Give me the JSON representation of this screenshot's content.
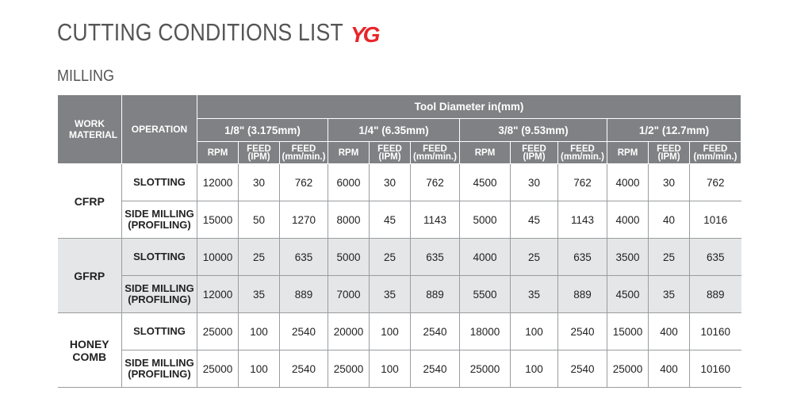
{
  "title": "CUTTING CONDITIONS LIST",
  "logo": {
    "text": "YG",
    "color": "#e8262b"
  },
  "section": "MILLING",
  "table": {
    "work_material_header": "WORK MATERIAL",
    "operation_header": "OPERATION",
    "tool_diameter_header": "Tool Diameter in(mm)",
    "diameters": [
      "1/8\" (3.175mm)",
      "1/4\" (6.35mm)",
      "3/8\" (9.53mm)",
      "1/2\" (12.7mm)"
    ],
    "sub_headers": [
      "RPM",
      "FEED (IPM)",
      "FEED (mm/min.)"
    ],
    "materials": [
      {
        "name": "CFRP",
        "rows": [
          {
            "operation": "SLOTTING",
            "values": [
              "12000",
              "30",
              "762",
              "6000",
              "30",
              "762",
              "4500",
              "30",
              "762",
              "4000",
              "30",
              "762"
            ]
          },
          {
            "operation": "SIDE MILLING (PROFILING)",
            "values": [
              "15000",
              "50",
              "1270",
              "8000",
              "45",
              "1143",
              "5000",
              "45",
              "1143",
              "4000",
              "40",
              "1016"
            ]
          }
        ]
      },
      {
        "name": "GFRP",
        "rows": [
          {
            "operation": "SLOTTING",
            "values": [
              "10000",
              "25",
              "635",
              "5000",
              "25",
              "635",
              "4000",
              "25",
              "635",
              "3500",
              "25",
              "635"
            ]
          },
          {
            "operation": "SIDE MILLING (PROFILING)",
            "values": [
              "12000",
              "35",
              "889",
              "7000",
              "35",
              "889",
              "5500",
              "35",
              "889",
              "4500",
              "35",
              "889"
            ]
          }
        ]
      },
      {
        "name": "HONEY COMB",
        "rows": [
          {
            "operation": "SLOTTING",
            "values": [
              "25000",
              "100",
              "2540",
              "20000",
              "100",
              "2540",
              "18000",
              "100",
              "2540",
              "15000",
              "400",
              "10160"
            ]
          },
          {
            "operation": "SIDE MILLING (PROFILING)",
            "values": [
              "25000",
              "100",
              "2540",
              "25000",
              "100",
              "2540",
              "25000",
              "100",
              "2540",
              "25000",
              "400",
              "10160"
            ]
          }
        ]
      }
    ],
    "colors": {
      "header_bg": "#7f8184",
      "shade_bg": "#e5e6e8",
      "title_color": "#555555"
    }
  }
}
